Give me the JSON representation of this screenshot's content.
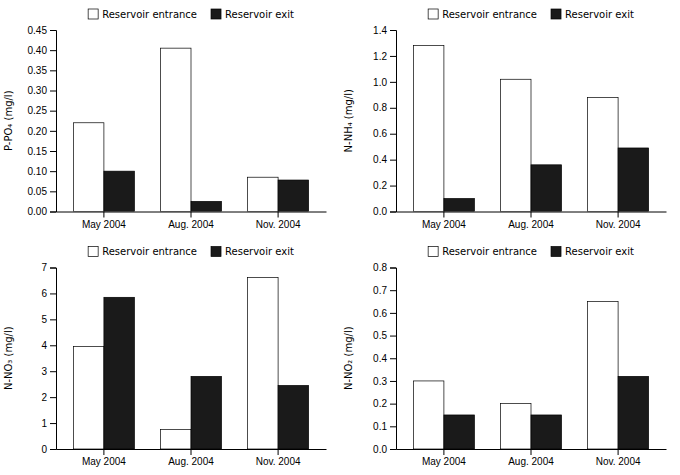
{
  "chart_data": [
    {
      "type": "bar",
      "ylabel": "P-PO₄ (mg/l)",
      "categories": [
        "May 2004",
        "Aug. 2004",
        "Nov. 2004"
      ],
      "series": [
        {
          "name": "Reservoir entrance",
          "color": "#ffffff",
          "values": [
            0.22,
            0.405,
            0.085
          ]
        },
        {
          "name": "Reservoir exit",
          "color": "#1a1a1a",
          "values": [
            0.1,
            0.025,
            0.078
          ]
        }
      ],
      "ylim": [
        0,
        0.45
      ],
      "yticks": [
        {
          "value": 0,
          "label": "0.00"
        },
        0.05,
        {
          "value": 0.1,
          "label": "0.10"
        },
        0.15,
        {
          "value": 0.2,
          "label": "0.20"
        },
        0.25,
        {
          "value": 0.3,
          "label": "0.30"
        },
        0.35,
        {
          "value": 0.4,
          "label": "0.40"
        },
        0.45
      ],
      "grid": false,
      "legend": "top"
    },
    {
      "type": "bar",
      "ylabel": "N-NH₄ (mg/l)",
      "categories": [
        "May 2004",
        "Aug. 2004",
        "Nov. 2004"
      ],
      "series": [
        {
          "name": "Reservoir entrance",
          "color": "#ffffff",
          "values": [
            1.28,
            1.02,
            0.88
          ]
        },
        {
          "name": "Reservoir exit",
          "color": "#1a1a1a",
          "values": [
            0.1,
            0.36,
            0.49
          ]
        }
      ],
      "ylim": [
        0,
        1.4
      ],
      "yticks": [
        {
          "value": 0,
          "label": "0.0"
        },
        0.2,
        0.4,
        0.6,
        0.8,
        {
          "value": 1.0,
          "label": "1.0"
        },
        1.2,
        1.4
      ],
      "grid": false,
      "legend": "top"
    },
    {
      "type": "bar",
      "ylabel": "N-NO₃ (mg/l)",
      "categories": [
        "May 2004",
        "Aug. 2004",
        "Nov. 2004"
      ],
      "series": [
        {
          "name": "Reservoir entrance",
          "color": "#ffffff",
          "values": [
            3.95,
            0.75,
            6.62
          ]
        },
        {
          "name": "Reservoir exit",
          "color": "#1a1a1a",
          "values": [
            5.85,
            2.8,
            2.45
          ]
        }
      ],
      "ylim": [
        0,
        7
      ],
      "yticks": [
        0,
        1,
        2,
        3,
        4,
        5,
        6,
        7
      ],
      "grid": false,
      "legend": "top"
    },
    {
      "type": "bar",
      "ylabel": "N-NO₂ (mg/l)",
      "categories": [
        "May 2004",
        "Aug. 2004",
        "Nov. 2004"
      ],
      "series": [
        {
          "name": "Reservoir entrance",
          "color": "#ffffff",
          "values": [
            0.3,
            0.2,
            0.65
          ]
        },
        {
          "name": "Reservoir exit",
          "color": "#1a1a1a",
          "values": [
            0.15,
            0.15,
            0.32
          ]
        }
      ],
      "ylim": [
        0,
        0.8
      ],
      "yticks": [
        {
          "value": 0,
          "label": "0.0"
        },
        0.1,
        0.2,
        0.3,
        0.4,
        0.5,
        0.6,
        0.7,
        0.8
      ],
      "grid": false,
      "legend": "top"
    }
  ]
}
